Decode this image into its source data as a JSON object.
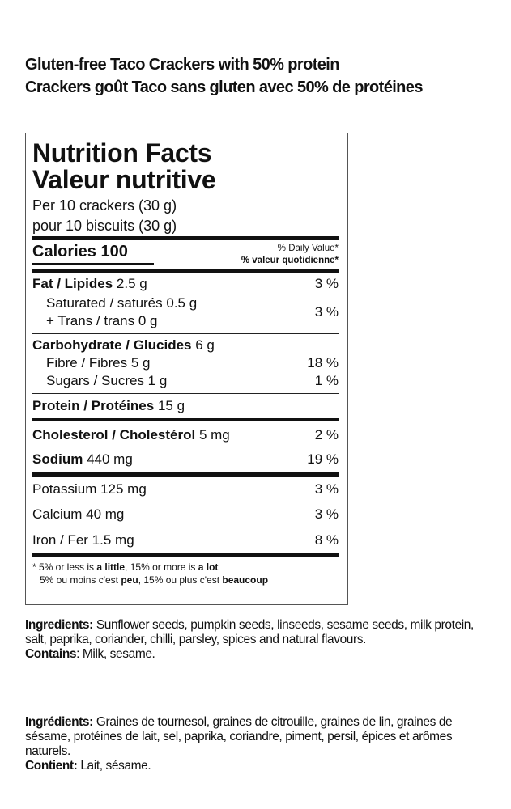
{
  "product": {
    "title_en": "Gluten-free Taco Crackers with 50% protein",
    "title_fr": "Crackers goût Taco sans gluten avec 50% de protéines"
  },
  "facts": {
    "heading_en": "Nutrition Facts",
    "heading_fr": "Valeur nutritive",
    "serving_en": "Per 10 crackers (30 g)",
    "serving_fr": "pour 10 biscuits (30 g)",
    "calories_label": "Calories 100",
    "dv_en": "% Daily Value*",
    "dv_fr": "% valeur quotidienne*",
    "rows": {
      "fat": {
        "label": "Fat / Lipides",
        "amount": "2.5 g",
        "pct": "3 %"
      },
      "saturated": {
        "label": "Saturated / saturés 0.5 g"
      },
      "trans": {
        "label": "+ Trans / trans 0 g",
        "pct": "3 %"
      },
      "carb": {
        "label": "Carbohydrate / Glucides",
        "amount": "6 g"
      },
      "fibre": {
        "label": "Fibre / Fibres 5 g",
        "pct": "18 %"
      },
      "sugars": {
        "label": "Sugars / Sucres 1 g",
        "pct": "1 %"
      },
      "protein": {
        "label": "Protein / Protéines",
        "amount": "15 g"
      },
      "cholesterol": {
        "label": "Cholesterol / Cholestérol",
        "amount": "5 mg",
        "pct": "2 %"
      },
      "sodium": {
        "label": "Sodium",
        "amount": "440 mg",
        "pct": "19 %"
      },
      "potassium": {
        "label": "Potassium 125 mg",
        "pct": "3 %"
      },
      "calcium": {
        "label": "Calcium 40 mg",
        "pct": "3 %"
      },
      "iron": {
        "label": "Iron / Fer 1.5 mg",
        "pct": "8 %"
      }
    },
    "footnote_en_a": "* 5% or less is ",
    "footnote_en_b": "a little",
    "footnote_en_c": ", 15% or more is ",
    "footnote_en_d": "a lot",
    "footnote_fr_a": "5% ou moins c'est ",
    "footnote_fr_b": "peu",
    "footnote_fr_c": ", 15% ou plus c'est ",
    "footnote_fr_d": "beaucoup"
  },
  "ingredients_en": {
    "label": "Ingredients:",
    "text": " Sunflower seeds, pumpkin seeds, linseeds, sesame seeds, milk protein, salt, paprika, coriander, chilli, parsley, spices and natural flavours.",
    "contains_label": "Contains",
    "contains_text": ": Milk, sesame."
  },
  "ingredients_fr": {
    "label": "Ingrédients:",
    "text": " Graines de tournesol, graines de citrouille, graines de lin, graines de sésame, protéines de lait, sel, paprika, coriandre, piment, persil, épices et arômes naturels.",
    "contains_label": "Contient:",
    "contains_text": " Lait, sésame."
  }
}
